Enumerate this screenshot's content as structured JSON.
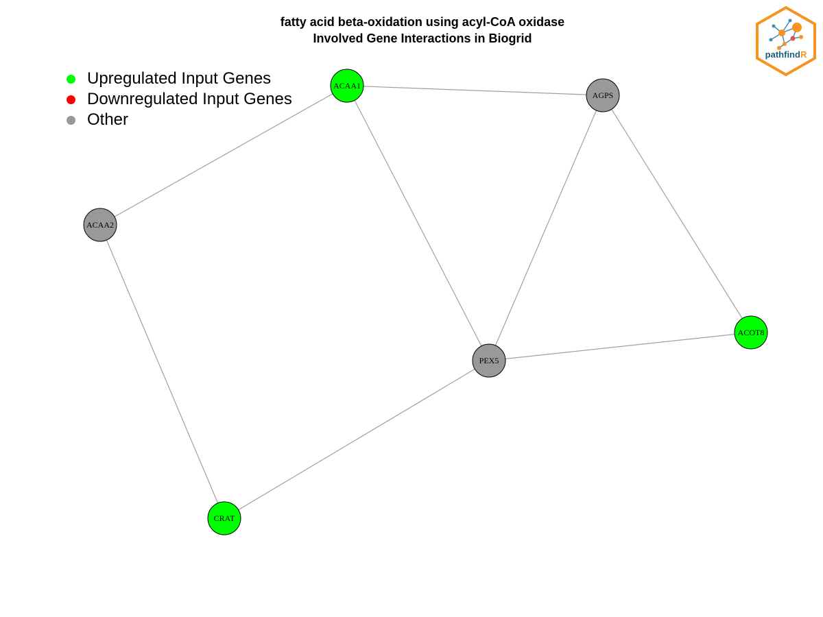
{
  "title": {
    "line1": "fatty acid beta-oxidation using acyl-CoA oxidase",
    "line2": "Involved Gene Interactions in Biogrid"
  },
  "legend": [
    {
      "label": "Upregulated Input Genes",
      "color": "#00ff00"
    },
    {
      "label": "Downregulated Input Genes",
      "color": "#ff0000"
    },
    {
      "label": "Other",
      "color": "#999999"
    }
  ],
  "logo": {
    "text_main": "pathfind",
    "text_accent": "R",
    "border_color": "#f7931e",
    "text_color": "#1a5f7a",
    "accent_color": "#f7931e"
  },
  "edge_color": "#a0a0a0",
  "node_border_color": "#000000",
  "nodes": [
    {
      "id": "ACAA1",
      "label": "ACAA1",
      "color": "#00ff00"
    },
    {
      "id": "AGPS",
      "label": "AGPS",
      "color": "#999999"
    },
    {
      "id": "ACAA2",
      "label": "ACAA2",
      "color": "#999999"
    },
    {
      "id": "ACOT8",
      "label": "ACOT8",
      "color": "#00ff00"
    },
    {
      "id": "PEX5",
      "label": "PEX5",
      "color": "#999999"
    },
    {
      "id": "CRAT",
      "label": "CRAT",
      "color": "#00ff00"
    }
  ],
  "edges": [
    [
      "ACAA1",
      "AGPS"
    ],
    [
      "ACAA1",
      "ACAA2"
    ],
    [
      "ACAA1",
      "PEX5"
    ],
    [
      "AGPS",
      "PEX5"
    ],
    [
      "AGPS",
      "ACOT8"
    ],
    [
      "PEX5",
      "ACOT8"
    ],
    [
      "PEX5",
      "CRAT"
    ],
    [
      "ACAA2",
      "CRAT"
    ]
  ]
}
